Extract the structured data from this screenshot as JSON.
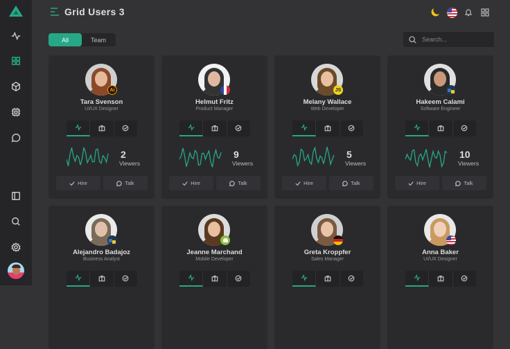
{
  "header": {
    "title": "Grid Users 3"
  },
  "filters": [
    {
      "label": "All",
      "active": true
    },
    {
      "label": "Team",
      "active": false
    }
  ],
  "search": {
    "placeholder": "Search..."
  },
  "colors": {
    "accent": "#26a886",
    "background": "#333336",
    "card": "#2a2a2d",
    "sidebar": "#252528"
  },
  "sidebar": {
    "items": [
      "activity-icon",
      "grid-icon",
      "cube-icon",
      "chip-icon",
      "chat-icon"
    ],
    "bottom": [
      "sidebar-toggle-icon",
      "search-icon",
      "gear-icon",
      "avatar"
    ]
  },
  "topbar_icons": [
    "moon-icon",
    "us-flag-icon",
    "bell-icon",
    "apps-icon"
  ],
  "labels": {
    "viewers": "Viewers",
    "hire": "Hire",
    "talk": "Talk"
  },
  "users": [
    {
      "name": "Tara Svenson",
      "role": "UI/UX Designer",
      "viewers": "2",
      "badge": "Ai",
      "badge_type": "ai",
      "hair": "#8a4a2a",
      "skin": "#e8b89a",
      "bg": "#cfcfcf"
    },
    {
      "name": "Helmut Fritz",
      "role": "Product Manager",
      "viewers": "9",
      "badge": "",
      "badge_type": "fr",
      "hair": "#333",
      "skin": "#e0b8a0",
      "bg": "#f2f2f2"
    },
    {
      "name": "Melany Wallace",
      "role": "Web Developer",
      "viewers": "5",
      "badge": "JS",
      "badge_type": "js",
      "hair": "#6a4a2a",
      "skin": "#e8c0a0",
      "bg": "#d8d8d8"
    },
    {
      "name": "Hakeem Calami",
      "role": "Software Engineer",
      "viewers": "10",
      "badge": "",
      "badge_type": "py",
      "hair": "#2a2a2a",
      "skin": "#c89878",
      "bg": "#e0e0e0"
    },
    {
      "name": "Alejandro Badajoz",
      "role": "Business Analyst",
      "viewers": "",
      "badge": "",
      "badge_type": "py",
      "hair": "#7a6a5a",
      "skin": "#e0c0a8",
      "bg": "#eaeaea"
    },
    {
      "name": "Jeanne Marchand",
      "role": "Mobile Developer",
      "viewers": "",
      "badge": "",
      "badge_type": "android",
      "hair": "#5a3a20",
      "skin": "#e8c0a0",
      "bg": "#dcdcdc"
    },
    {
      "name": "Greta Kroppfer",
      "role": "Sales Manager",
      "viewers": "",
      "badge": "",
      "badge_type": "de",
      "hair": "#7a5a40",
      "skin": "#e8c4a8",
      "bg": "#d0d0d0"
    },
    {
      "name": "Anna Baker",
      "role": "UI/UX Designer",
      "viewers": "",
      "badge": "",
      "badge_type": "us",
      "hair": "#c89a60",
      "skin": "#f0d0b8",
      "bg": "#e8e8e8"
    }
  ]
}
